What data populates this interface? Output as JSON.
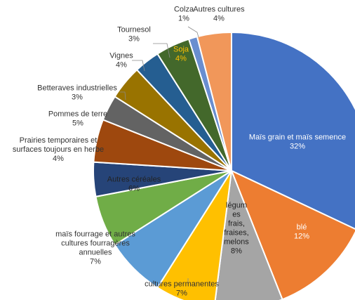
{
  "chart_data": {
    "type": "pie",
    "title": "",
    "start_angle_deg": 0,
    "direction": "clockwise",
    "slices": [
      {
        "label": "Maïs grain et maïs semence",
        "value": 32,
        "display": "32%",
        "color": "#4472C4",
        "text_color": "#ffffff"
      },
      {
        "label": "blé",
        "value": 12,
        "display": "12%",
        "color": "#ED7D31",
        "text_color": "#ffffff"
      },
      {
        "label": "légumes frais, fraises, melons",
        "value": 8,
        "display": "8%",
        "color": "#A5A5A5",
        "text_color": "#222222"
      },
      {
        "label": "cultures permanentes",
        "value": 7,
        "display": "7%",
        "color": "#FFC000",
        "text_color": "#333333"
      },
      {
        "label": "maïs fourrage et autres cultures fourragères annuelles",
        "value": 7,
        "display": "7%",
        "color": "#5B9BD5",
        "text_color": "#333333"
      },
      {
        "label": "Autres céréales",
        "value": 6,
        "display": "6%",
        "color": "#70AD47",
        "text_color": "#222222"
      },
      {
        "label": "Prairies temporaires et surfaces toujours en herbe",
        "value": 4,
        "display": "4%",
        "color": "#264478",
        "text_color": "#333333"
      },
      {
        "label": "Pommes de terre",
        "value": 5,
        "display": "5%",
        "color": "#9E480E",
        "text_color": "#333333"
      },
      {
        "label": "Betteraves industrielles",
        "value": 3,
        "display": "3%",
        "color": "#636363",
        "text_color": "#333333"
      },
      {
        "label": "Vignes",
        "value": 4,
        "display": "4%",
        "color": "#997300",
        "text_color": "#333333"
      },
      {
        "label": "Tournesol",
        "value": 3,
        "display": "3%",
        "color": "#255E91",
        "text_color": "#333333"
      },
      {
        "label": "Soja",
        "value": 4,
        "display": "4%",
        "color": "#43682B",
        "text_color": "#FFC000"
      },
      {
        "label": "Colza",
        "value": 1,
        "display": "1%",
        "color": "#698ED0",
        "text_color": "#333333"
      },
      {
        "label": "Autres cultures",
        "value": 4,
        "display": "4%",
        "color": "#F1975A",
        "text_color": "#333333"
      }
    ]
  }
}
